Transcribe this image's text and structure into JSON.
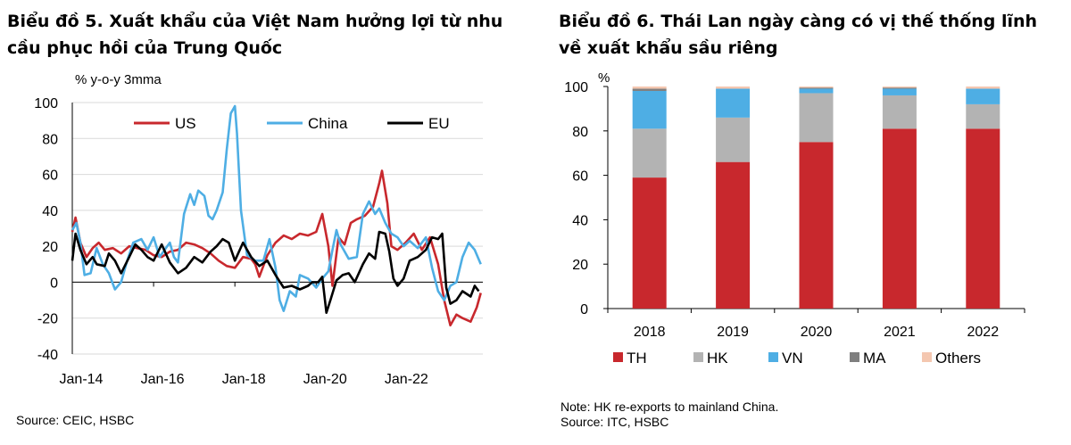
{
  "left": {
    "title_line1": "Biểu đồ 5. Xuất khẩu của Việt Nam hưởng lợi từ nhu",
    "title_line2": "cầu phục hồi của Trung Quốc",
    "source": "Source: CEIC, HSBC"
  },
  "right": {
    "title_line1": "Biểu đồ 6. Thái Lan ngày càng có vị thế thống lĩnh",
    "title_line2": "về xuất khẩu sầu riêng",
    "note": "Note: HK re-exports to mainland China.",
    "source": "Source: ITC, HSBC"
  },
  "chart_data": [
    {
      "type": "line",
      "ylabel": "% y-o-y 3mma",
      "ylim": [
        -40,
        100
      ],
      "yticks": [
        -40,
        -20,
        0,
        20,
        40,
        60,
        80,
        100
      ],
      "xlim": [
        2014.0,
        2024.1
      ],
      "xtick_labels": [
        "Jan-14",
        "Jan-16",
        "Jan-18",
        "Jan-20",
        "Jan-22"
      ],
      "xtick_values": [
        2014,
        2016,
        2018,
        2020,
        2022
      ],
      "grid": true,
      "legend_position": "top",
      "series": [
        {
          "name": "US",
          "color": "#c8282d",
          "points": [
            [
              2014.0,
              28
            ],
            [
              2014.08,
              36
            ],
            [
              2014.2,
              22
            ],
            [
              2014.35,
              14
            ],
            [
              2014.5,
              19
            ],
            [
              2014.65,
              22
            ],
            [
              2014.8,
              18
            ],
            [
              2015.0,
              19
            ],
            [
              2015.2,
              16
            ],
            [
              2015.4,
              20
            ],
            [
              2015.6,
              19
            ],
            [
              2015.8,
              18
            ],
            [
              2016.0,
              15
            ],
            [
              2016.2,
              14
            ],
            [
              2016.4,
              17
            ],
            [
              2016.6,
              18
            ],
            [
              2016.8,
              22
            ],
            [
              2017.0,
              21
            ],
            [
              2017.2,
              19
            ],
            [
              2017.4,
              16
            ],
            [
              2017.6,
              12
            ],
            [
              2017.8,
              9
            ],
            [
              2018.0,
              8
            ],
            [
              2018.2,
              14
            ],
            [
              2018.4,
              13
            ],
            [
              2018.5,
              10
            ],
            [
              2018.6,
              3
            ],
            [
              2018.8,
              15
            ],
            [
              2019.0,
              22
            ],
            [
              2019.2,
              26
            ],
            [
              2019.4,
              24
            ],
            [
              2019.6,
              27
            ],
            [
              2019.8,
              26
            ],
            [
              2020.0,
              28
            ],
            [
              2020.15,
              38
            ],
            [
              2020.3,
              20
            ],
            [
              2020.4,
              -2
            ],
            [
              2020.55,
              25
            ],
            [
              2020.7,
              21
            ],
            [
              2020.85,
              33
            ],
            [
              2021.0,
              35
            ],
            [
              2021.2,
              37
            ],
            [
              2021.4,
              42
            ],
            [
              2021.55,
              55
            ],
            [
              2021.62,
              62
            ],
            [
              2021.75,
              44
            ],
            [
              2021.85,
              20
            ],
            [
              2022.0,
              18
            ],
            [
              2022.2,
              22
            ],
            [
              2022.4,
              27
            ],
            [
              2022.6,
              18
            ],
            [
              2022.8,
              25
            ],
            [
              2023.0,
              10
            ],
            [
              2023.15,
              -10
            ],
            [
              2023.3,
              -24
            ],
            [
              2023.45,
              -18
            ],
            [
              2023.6,
              -20
            ],
            [
              2023.8,
              -22
            ],
            [
              2023.95,
              -14
            ],
            [
              2024.05,
              -6
            ]
          ]
        },
        {
          "name": "China",
          "color": "#4eaee4",
          "points": [
            [
              2014.0,
              29
            ],
            [
              2014.1,
              33
            ],
            [
              2014.2,
              22
            ],
            [
              2014.3,
              4
            ],
            [
              2014.45,
              5
            ],
            [
              2014.6,
              19
            ],
            [
              2014.75,
              10
            ],
            [
              2014.9,
              5
            ],
            [
              2015.05,
              -4
            ],
            [
              2015.2,
              0
            ],
            [
              2015.35,
              12
            ],
            [
              2015.5,
              22
            ],
            [
              2015.7,
              24
            ],
            [
              2015.85,
              18
            ],
            [
              2016.0,
              25
            ],
            [
              2016.15,
              14
            ],
            [
              2016.3,
              19
            ],
            [
              2016.4,
              22
            ],
            [
              2016.5,
              14
            ],
            [
              2016.6,
              11
            ],
            [
              2016.75,
              38
            ],
            [
              2016.9,
              49
            ],
            [
              2017.0,
              43
            ],
            [
              2017.1,
              51
            ],
            [
              2017.25,
              48
            ],
            [
              2017.35,
              37
            ],
            [
              2017.45,
              35
            ],
            [
              2017.55,
              40
            ],
            [
              2017.7,
              50
            ],
            [
              2017.8,
              74
            ],
            [
              2017.9,
              94
            ],
            [
              2018.0,
              98
            ],
            [
              2018.05,
              83
            ],
            [
              2018.15,
              40
            ],
            [
              2018.3,
              15
            ],
            [
              2018.5,
              12
            ],
            [
              2018.7,
              12
            ],
            [
              2018.85,
              24
            ],
            [
              2019.0,
              8
            ],
            [
              2019.1,
              -10
            ],
            [
              2019.2,
              -16
            ],
            [
              2019.35,
              -5
            ],
            [
              2019.5,
              -8
            ],
            [
              2019.6,
              4
            ],
            [
              2019.8,
              2
            ],
            [
              2020.0,
              -3
            ],
            [
              2020.15,
              2
            ],
            [
              2020.3,
              6
            ],
            [
              2020.4,
              18
            ],
            [
              2020.5,
              29
            ],
            [
              2020.6,
              21
            ],
            [
              2020.8,
              13
            ],
            [
              2021.0,
              14
            ],
            [
              2021.15,
              38
            ],
            [
              2021.3,
              45
            ],
            [
              2021.45,
              38
            ],
            [
              2021.55,
              41
            ],
            [
              2021.7,
              33
            ],
            [
              2021.85,
              27
            ],
            [
              2022.0,
              25
            ],
            [
              2022.15,
              20
            ],
            [
              2022.3,
              23
            ],
            [
              2022.5,
              19
            ],
            [
              2022.7,
              25
            ],
            [
              2022.85,
              8
            ],
            [
              2023.0,
              -5
            ],
            [
              2023.15,
              -10
            ],
            [
              2023.3,
              -2
            ],
            [
              2023.45,
              0
            ],
            [
              2023.6,
              14
            ],
            [
              2023.75,
              22
            ],
            [
              2023.9,
              18
            ],
            [
              2024.05,
              10
            ]
          ]
        },
        {
          "name": "EU",
          "color": "#000000",
          "points": [
            [
              2014.0,
              12
            ],
            [
              2014.08,
              27
            ],
            [
              2014.2,
              18
            ],
            [
              2014.35,
              10
            ],
            [
              2014.5,
              14
            ],
            [
              2014.6,
              10
            ],
            [
              2014.8,
              9
            ],
            [
              2014.9,
              16
            ],
            [
              2015.05,
              12
            ],
            [
              2015.2,
              5
            ],
            [
              2015.4,
              14
            ],
            [
              2015.55,
              21
            ],
            [
              2015.7,
              18
            ],
            [
              2015.85,
              14
            ],
            [
              2016.0,
              12
            ],
            [
              2016.2,
              21
            ],
            [
              2016.4,
              11
            ],
            [
              2016.6,
              5
            ],
            [
              2016.8,
              8
            ],
            [
              2017.0,
              14
            ],
            [
              2017.2,
              11
            ],
            [
              2017.4,
              17
            ],
            [
              2017.55,
              20
            ],
            [
              2017.7,
              24
            ],
            [
              2017.85,
              22
            ],
            [
              2018.0,
              12
            ],
            [
              2018.2,
              22
            ],
            [
              2018.4,
              14
            ],
            [
              2018.6,
              9
            ],
            [
              2018.8,
              12
            ],
            [
              2019.0,
              4
            ],
            [
              2019.2,
              -3
            ],
            [
              2019.4,
              -2
            ],
            [
              2019.6,
              -4
            ],
            [
              2019.8,
              -2
            ],
            [
              2019.9,
              0
            ],
            [
              2020.05,
              0
            ],
            [
              2020.15,
              3
            ],
            [
              2020.25,
              -17
            ],
            [
              2020.35,
              -10
            ],
            [
              2020.5,
              1
            ],
            [
              2020.65,
              4
            ],
            [
              2020.8,
              5
            ],
            [
              2020.95,
              0
            ],
            [
              2021.15,
              10
            ],
            [
              2021.3,
              16
            ],
            [
              2021.45,
              13
            ],
            [
              2021.55,
              28
            ],
            [
              2021.7,
              27
            ],
            [
              2021.8,
              17
            ],
            [
              2021.9,
              2
            ],
            [
              2022.0,
              -2
            ],
            [
              2022.15,
              2
            ],
            [
              2022.3,
              12
            ],
            [
              2022.5,
              14
            ],
            [
              2022.7,
              18
            ],
            [
              2022.85,
              25
            ],
            [
              2023.0,
              24
            ],
            [
              2023.1,
              27
            ],
            [
              2023.2,
              -3
            ],
            [
              2023.3,
              -12
            ],
            [
              2023.45,
              -10
            ],
            [
              2023.6,
              -5
            ],
            [
              2023.8,
              -8
            ],
            [
              2023.9,
              -2
            ],
            [
              2024.0,
              -5
            ]
          ]
        }
      ]
    },
    {
      "type": "bar",
      "stacked": true,
      "ylabel": "%",
      "ylim": [
        0,
        100
      ],
      "yticks": [
        0,
        20,
        40,
        60,
        80,
        100
      ],
      "categories": [
        "2018",
        "2019",
        "2020",
        "2021",
        "2022"
      ],
      "grid": false,
      "legend_position": "bottom",
      "series": [
        {
          "name": "TH",
          "color": "#c8282d",
          "values": [
            59,
            66,
            75,
            81,
            81
          ]
        },
        {
          "name": "HK",
          "color": "#b3b3b3",
          "values": [
            22,
            20,
            22,
            15,
            11
          ]
        },
        {
          "name": "VN",
          "color": "#4eaee4",
          "values": [
            17,
            13,
            2,
            3,
            7
          ]
        },
        {
          "name": "MA",
          "color": "#7f7f7f",
          "values": [
            1,
            0,
            0.5,
            0.5,
            0
          ]
        },
        {
          "name": "Others",
          "color": "#f4c7b0",
          "values": [
            1,
            1,
            0.5,
            0.5,
            1
          ]
        }
      ]
    }
  ]
}
